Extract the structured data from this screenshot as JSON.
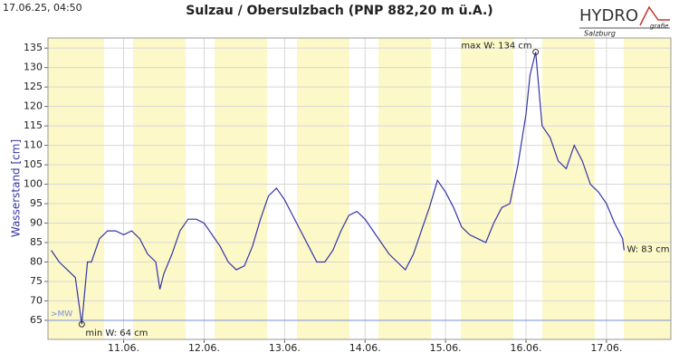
{
  "chart_data": {
    "type": "line",
    "timestamp": "17.06.25, 04:50",
    "title": "Sulzau / Obersulzbach (PNP 882,20 m ü.A.)",
    "logo": {
      "main": "HYDRO",
      "sub": "grafie",
      "region": "Salzburg"
    },
    "y_label": "Wasserstand [cm]",
    "color": "#3535a5",
    "grid": true,
    "x": [
      10.1,
      10.2,
      10.3,
      10.4,
      10.48,
      10.55,
      10.6,
      10.7,
      10.8,
      10.9,
      11.0,
      11.1,
      11.2,
      11.3,
      11.4,
      11.45,
      11.5,
      11.6,
      11.7,
      11.8,
      11.9,
      12.0,
      12.1,
      12.2,
      12.3,
      12.4,
      12.5,
      12.6,
      12.7,
      12.8,
      12.9,
      13.0,
      13.1,
      13.2,
      13.3,
      13.4,
      13.5,
      13.6,
      13.7,
      13.8,
      13.9,
      14.0,
      14.1,
      14.2,
      14.3,
      14.4,
      14.5,
      14.6,
      14.7,
      14.8,
      14.9,
      15.0,
      15.1,
      15.2,
      15.3,
      15.4,
      15.5,
      15.6,
      15.7,
      15.8,
      15.9,
      16.0,
      16.05,
      16.12,
      16.2,
      16.3,
      16.4,
      16.5,
      16.6,
      16.7,
      16.8,
      16.9,
      17.0,
      17.1,
      17.2,
      17.22
    ],
    "values": [
      83,
      80,
      78,
      76,
      64,
      80,
      80,
      86,
      88,
      88,
      87,
      88,
      86,
      82,
      80,
      73,
      77,
      82,
      88,
      91,
      91,
      90,
      87,
      84,
      80,
      78,
      79,
      84,
      91,
      97,
      99,
      96,
      92,
      88,
      84,
      80,
      80,
      83,
      88,
      92,
      93,
      91,
      88,
      85,
      82,
      80,
      78,
      82,
      88,
      94,
      101,
      98,
      94,
      89,
      87,
      86,
      85,
      90,
      94,
      95,
      105,
      118,
      128,
      134,
      115,
      112,
      106,
      104,
      110,
      106,
      100,
      98,
      95,
      90,
      86,
      83
    ],
    "xlim": [
      10.06,
      17.8
    ],
    "ylim": [
      60.1,
      137.6
    ],
    "xticks": [
      {
        "value": 11,
        "label": "11.06."
      },
      {
        "value": 12,
        "label": "12.06."
      },
      {
        "value": 13,
        "label": "13.06."
      },
      {
        "value": 14,
        "label": "14.06."
      },
      {
        "value": 15,
        "label": "15.06."
      },
      {
        "value": 16,
        "label": "16.06."
      },
      {
        "value": 17,
        "label": "17.06."
      }
    ],
    "yticks": [
      65,
      70,
      75,
      80,
      85,
      90,
      95,
      100,
      105,
      110,
      115,
      120,
      125,
      130,
      135
    ],
    "mw": {
      "label": ">MW",
      "value": 65
    },
    "annotations": [
      {
        "text": "max W: 134 cm",
        "x": 16.12,
        "y": 134
      },
      {
        "text": "min W: 64 cm",
        "x": 10.48,
        "y": 64
      },
      {
        "text": "W: 83 cm",
        "x": 17.22,
        "y": 83
      }
    ]
  }
}
